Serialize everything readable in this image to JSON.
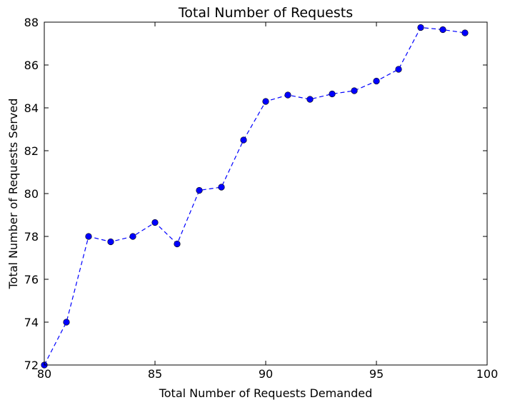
{
  "chart_data": {
    "type": "line",
    "title": "Total Number of Requests",
    "xlabel": "Total Number of Requests Demanded",
    "ylabel": "Total Number of Requests Served",
    "xlim": [
      80,
      100
    ],
    "ylim": [
      72,
      88
    ],
    "xticks": [
      80,
      85,
      90,
      95,
      100
    ],
    "yticks": [
      72,
      74,
      76,
      78,
      80,
      82,
      84,
      86,
      88
    ],
    "grid": false,
    "legend": "none",
    "series": [
      {
        "color": "#0000ff",
        "line_style": "dashed",
        "marker": "circle",
        "x": [
          80,
          81,
          82,
          83,
          84,
          85,
          86,
          87,
          88,
          89,
          90,
          91,
          92,
          93,
          94,
          95,
          96,
          97,
          98,
          99
        ],
        "y": [
          72.0,
          74.0,
          78.0,
          77.75,
          78.0,
          78.65,
          77.65,
          80.15,
          80.3,
          82.5,
          84.3,
          84.6,
          84.4,
          84.65,
          84.8,
          85.25,
          85.8,
          87.75,
          87.65,
          87.5
        ]
      }
    ]
  }
}
